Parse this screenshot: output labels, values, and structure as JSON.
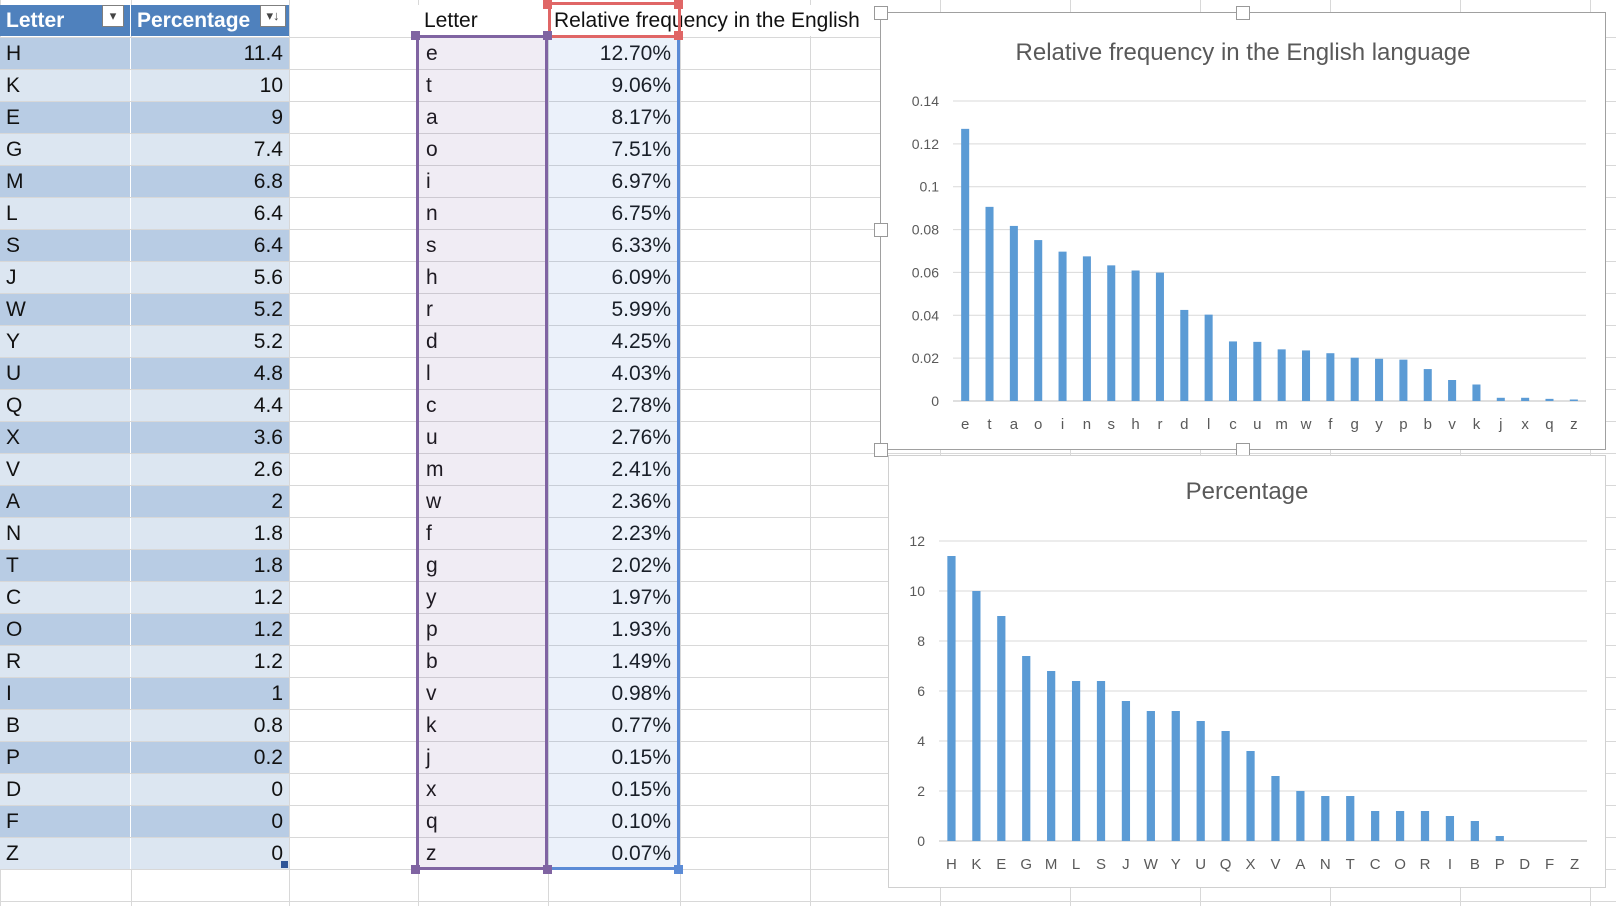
{
  "table1": {
    "headers": [
      "Letter",
      "Percentage"
    ],
    "filter_icons": [
      "▾",
      "▾↓"
    ],
    "rows": [
      [
        "H",
        "11.4"
      ],
      [
        "K",
        "10"
      ],
      [
        "E",
        "9"
      ],
      [
        "G",
        "7.4"
      ],
      [
        "M",
        "6.8"
      ],
      [
        "L",
        "6.4"
      ],
      [
        "S",
        "6.4"
      ],
      [
        "J",
        "5.6"
      ],
      [
        "W",
        "5.2"
      ],
      [
        "Y",
        "5.2"
      ],
      [
        "U",
        "4.8"
      ],
      [
        "Q",
        "4.4"
      ],
      [
        "X",
        "3.6"
      ],
      [
        "V",
        "2.6"
      ],
      [
        "A",
        "2"
      ],
      [
        "N",
        "1.8"
      ],
      [
        "T",
        "1.8"
      ],
      [
        "C",
        "1.2"
      ],
      [
        "O",
        "1.2"
      ],
      [
        "R",
        "1.2"
      ],
      [
        "I",
        "1"
      ],
      [
        "B",
        "0.8"
      ],
      [
        "P",
        "0.2"
      ],
      [
        "D",
        "0"
      ],
      [
        "F",
        "0"
      ],
      [
        "Z",
        "0"
      ]
    ]
  },
  "table2": {
    "headers": [
      "Letter",
      "Relative frequency in the English"
    ],
    "rows": [
      [
        "e",
        "12.70%"
      ],
      [
        "t",
        "9.06%"
      ],
      [
        "a",
        "8.17%"
      ],
      [
        "o",
        "7.51%"
      ],
      [
        "i",
        "6.97%"
      ],
      [
        "n",
        "6.75%"
      ],
      [
        "s",
        "6.33%"
      ],
      [
        "h",
        "6.09%"
      ],
      [
        "r",
        "5.99%"
      ],
      [
        "d",
        "4.25%"
      ],
      [
        "l",
        "4.03%"
      ],
      [
        "c",
        "2.78%"
      ],
      [
        "u",
        "2.76%"
      ],
      [
        "m",
        "2.41%"
      ],
      [
        "w",
        "2.36%"
      ],
      [
        "f",
        "2.23%"
      ],
      [
        "g",
        "2.02%"
      ],
      [
        "y",
        "1.97%"
      ],
      [
        "p",
        "1.93%"
      ],
      [
        "b",
        "1.49%"
      ],
      [
        "v",
        "0.98%"
      ],
      [
        "k",
        "0.77%"
      ],
      [
        "j",
        "0.15%"
      ],
      [
        "x",
        "0.15%"
      ],
      [
        "q",
        "0.10%"
      ],
      [
        "z",
        "0.07%"
      ]
    ]
  },
  "colors": {
    "bar": "#5b9bd5",
    "header": "#4f81bd",
    "band1": "#b8cce4",
    "band2": "#dce6f1",
    "sel_purple": "#8064a2",
    "sel_red": "#e06666",
    "sel_blue": "#5b8bd6"
  },
  "chart_data": [
    {
      "type": "bar",
      "title": "Relative frequency in the English language",
      "categories": [
        "e",
        "t",
        "a",
        "o",
        "i",
        "n",
        "s",
        "h",
        "r",
        "d",
        "l",
        "c",
        "u",
        "m",
        "w",
        "f",
        "g",
        "y",
        "p",
        "b",
        "v",
        "k",
        "j",
        "x",
        "q",
        "z"
      ],
      "values": [
        0.127,
        0.0906,
        0.0817,
        0.0751,
        0.0697,
        0.0675,
        0.0633,
        0.0609,
        0.0599,
        0.0425,
        0.0403,
        0.0278,
        0.0276,
        0.0241,
        0.0236,
        0.0223,
        0.0202,
        0.0197,
        0.0193,
        0.0149,
        0.0098,
        0.0077,
        0.0015,
        0.0015,
        0.001,
        0.0007
      ],
      "yticks": [
        "0",
        "0.02",
        "0.04",
        "0.06",
        "0.08",
        "0.1",
        "0.12",
        "0.14"
      ],
      "ylim": [
        0,
        0.14
      ],
      "grid": true
    },
    {
      "type": "bar",
      "title": "Percentage",
      "categories": [
        "H",
        "K",
        "E",
        "G",
        "M",
        "L",
        "S",
        "J",
        "W",
        "Y",
        "U",
        "Q",
        "X",
        "V",
        "A",
        "N",
        "T",
        "C",
        "O",
        "R",
        "I",
        "B",
        "P",
        "D",
        "F",
        "Z"
      ],
      "values": [
        11.4,
        10,
        9,
        7.4,
        6.8,
        6.4,
        6.4,
        5.6,
        5.2,
        5.2,
        4.8,
        4.4,
        3.6,
        2.6,
        2,
        1.8,
        1.8,
        1.2,
        1.2,
        1.2,
        1,
        0.8,
        0.2,
        0,
        0,
        0
      ],
      "yticks": [
        "0",
        "2",
        "4",
        "6",
        "8",
        "10",
        "12"
      ],
      "ylim": [
        0,
        12
      ],
      "grid": true
    }
  ]
}
